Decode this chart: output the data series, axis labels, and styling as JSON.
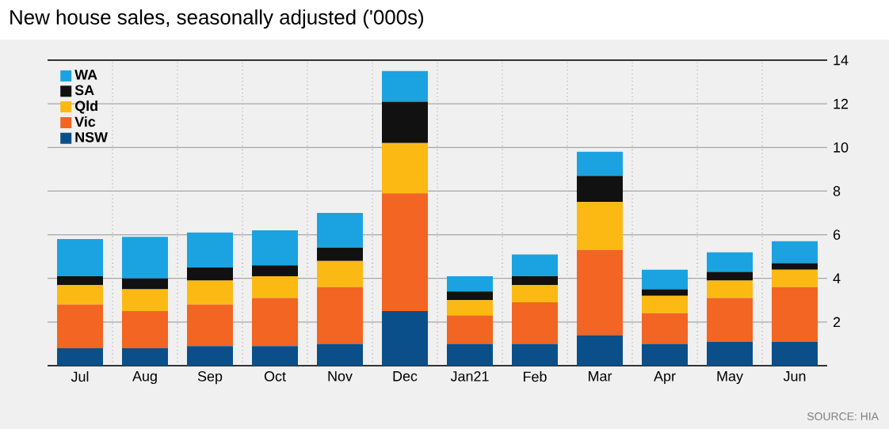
{
  "chart_data": {
    "type": "bar",
    "stacked": true,
    "title": "New house sales, seasonally adjusted ('000s)",
    "categories": [
      "Jul",
      "Aug",
      "Sep",
      "Oct",
      "Nov",
      "Dec",
      "Jan21",
      "Feb",
      "Mar",
      "Apr",
      "May",
      "Jun"
    ],
    "series": [
      {
        "name": "NSW",
        "color": "#0a4f8a",
        "values": [
          0.8,
          0.8,
          0.9,
          0.9,
          1.0,
          2.5,
          1.0,
          1.0,
          1.4,
          1.0,
          1.1,
          1.1
        ]
      },
      {
        "name": "Vic",
        "color": "#f26522",
        "values": [
          2.0,
          1.7,
          1.9,
          2.2,
          2.6,
          5.4,
          1.3,
          1.9,
          3.9,
          1.4,
          2.0,
          2.5
        ]
      },
      {
        "name": "Qld",
        "color": "#fdb913",
        "values": [
          0.9,
          1.0,
          1.1,
          1.0,
          1.2,
          2.3,
          0.7,
          0.8,
          2.2,
          0.8,
          0.8,
          0.8
        ]
      },
      {
        "name": "SA",
        "color": "#111111",
        "values": [
          0.4,
          0.5,
          0.6,
          0.5,
          0.6,
          1.9,
          0.4,
          0.4,
          1.2,
          0.3,
          0.4,
          0.3
        ]
      },
      {
        "name": "WA",
        "color": "#1aa3e0",
        "values": [
          1.7,
          1.9,
          1.6,
          1.6,
          1.6,
          1.4,
          0.7,
          1.0,
          1.1,
          0.9,
          0.9,
          1.0
        ]
      }
    ],
    "ylim": [
      0,
      14
    ],
    "yticks": [
      2,
      4,
      6,
      8,
      10,
      12,
      14
    ],
    "grid": true,
    "legend": "top left",
    "annotations": [
      "SOURCE: HIA"
    ]
  }
}
